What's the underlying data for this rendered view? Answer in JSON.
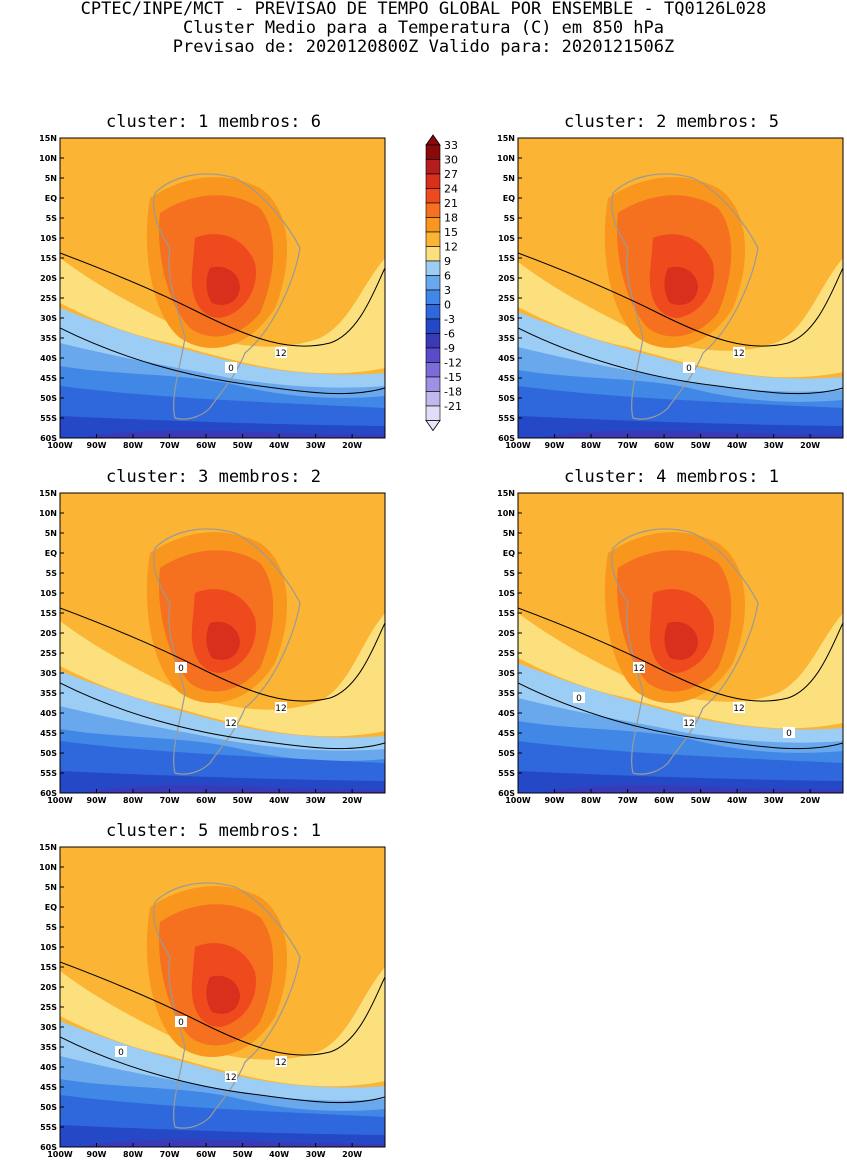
{
  "header": {
    "line1": "CPTEC/INPE/MCT - PREVISAO DE TEMPO GLOBAL POR ENSEMBLE - TQ0126L028",
    "line2": "Cluster Medio para a Temperatura (C) em 850 hPa",
    "line3": "Previsao de: 2020120800Z   Valido para: 2020121506Z"
  },
  "axes": {
    "lat_labels": [
      "15N",
      "10N",
      "5N",
      "EQ",
      "5S",
      "10S",
      "15S",
      "20S",
      "25S",
      "30S",
      "35S",
      "40S",
      "45S",
      "50S",
      "55S",
      "60S"
    ],
    "lon_labels": [
      "100W",
      "90W",
      "80W",
      "70W",
      "60W",
      "50W",
      "40W",
      "30W",
      "20W"
    ]
  },
  "panels": [
    {
      "title": "cluster: 1   membros: 6",
      "contour_labels": [
        "12",
        "0"
      ]
    },
    {
      "title": "cluster: 2   membros: 5",
      "contour_labels": [
        "12",
        "0"
      ]
    },
    {
      "title": "cluster: 3   membros: 2",
      "contour_labels": [
        "12",
        "12",
        "0"
      ]
    },
    {
      "title": "cluster: 4   membros: 1",
      "contour_labels": [
        "12",
        "12",
        "12",
        "0",
        "0"
      ]
    },
    {
      "title": "cluster: 5   membros: 1",
      "contour_labels": [
        "12",
        "12",
        "0",
        "0"
      ]
    }
  ],
  "colorbar": {
    "labels": [
      "33",
      "30",
      "27",
      "24",
      "21",
      "18",
      "15",
      "12",
      "9",
      "6",
      "3",
      "0",
      "-3",
      "-6",
      "-9",
      "-12",
      "-15",
      "-18",
      "-21"
    ],
    "colors": [
      "#8a0a0a",
      "#b51c1c",
      "#d8301c",
      "#ee4a1e",
      "#f5701f",
      "#f8961e",
      "#fbb433",
      "#fde07e",
      "#9ccdf5",
      "#6aa8ee",
      "#4187e6",
      "#2e68dc",
      "#2548c6",
      "#3a3ab8",
      "#5a4cc8",
      "#7c6cd8",
      "#9e90e2",
      "#c2b8ee",
      "#e2dcf8"
    ],
    "cap_top_color": "#8a0a0a",
    "cap_bottom_color": "#e8e4fa"
  }
}
